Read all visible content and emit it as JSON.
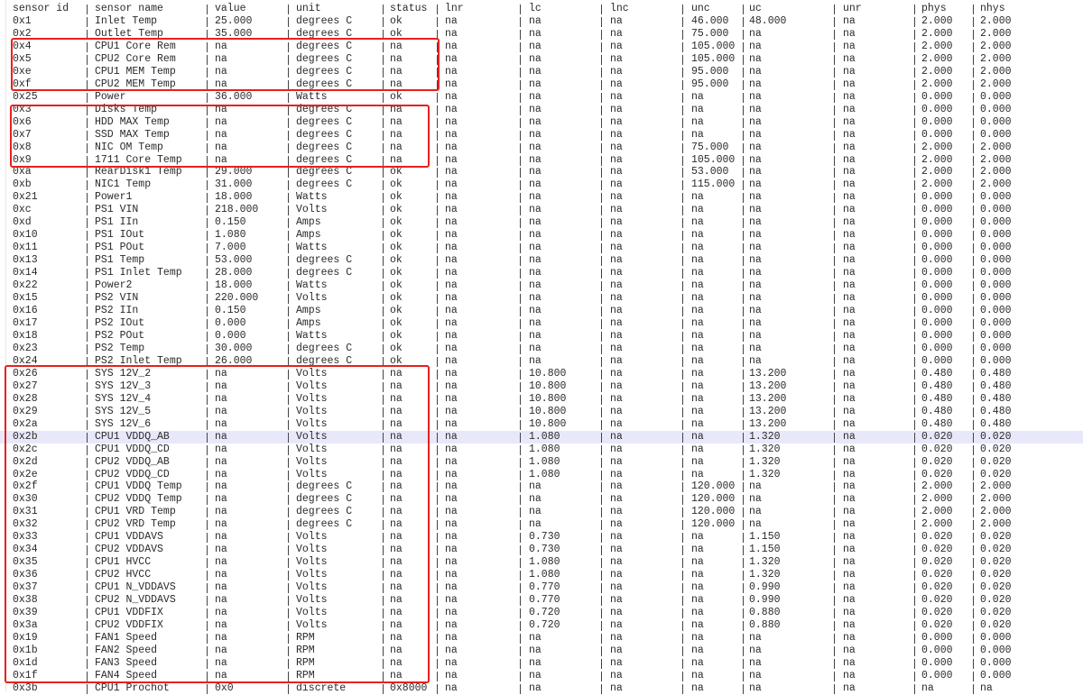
{
  "header": [
    "sensor id",
    "sensor name",
    "value",
    "unit",
    "status",
    "lnr",
    "lc",
    "lnc",
    "unc",
    "uc",
    "unr",
    "phys",
    "nhys"
  ],
  "rows": [
    [
      "0x1",
      "Inlet Temp",
      "25.000",
      "degrees C",
      "ok",
      "na",
      "na",
      "na",
      "46.000",
      "48.000",
      "na",
      "2.000",
      "2.000"
    ],
    [
      "0x2",
      "Outlet Temp",
      "35.000",
      "degrees C",
      "ok",
      "na",
      "na",
      "na",
      "75.000",
      "na",
      "na",
      "2.000",
      "2.000"
    ],
    [
      "0x4",
      "CPU1 Core Rem",
      "na",
      "degrees C",
      "na",
      "na",
      "na",
      "na",
      "105.000",
      "na",
      "na",
      "2.000",
      "2.000"
    ],
    [
      "0x5",
      "CPU2 Core Rem",
      "na",
      "degrees C",
      "na",
      "na",
      "na",
      "na",
      "105.000",
      "na",
      "na",
      "2.000",
      "2.000"
    ],
    [
      "0xe",
      "CPU1 MEM Temp",
      "na",
      "degrees C",
      "na",
      "na",
      "na",
      "na",
      "95.000",
      "na",
      "na",
      "2.000",
      "2.000"
    ],
    [
      "0xf",
      "CPU2 MEM Temp",
      "na",
      "degrees C",
      "na",
      "na",
      "na",
      "na",
      "95.000",
      "na",
      "na",
      "2.000",
      "2.000"
    ],
    [
      "0x25",
      "Power",
      "36.000",
      "Watts",
      "ok",
      "na",
      "na",
      "na",
      "na",
      "na",
      "na",
      "0.000",
      "0.000"
    ],
    [
      "0x3",
      "Disks Temp",
      "na",
      "degrees C",
      "na",
      "na",
      "na",
      "na",
      "na",
      "na",
      "na",
      "0.000",
      "0.000"
    ],
    [
      "0x6",
      "HDD MAX Temp",
      "na",
      "degrees C",
      "na",
      "na",
      "na",
      "na",
      "na",
      "na",
      "na",
      "0.000",
      "0.000"
    ],
    [
      "0x7",
      "SSD MAX Temp",
      "na",
      "degrees C",
      "na",
      "na",
      "na",
      "na",
      "na",
      "na",
      "na",
      "0.000",
      "0.000"
    ],
    [
      "0x8",
      "NIC OM Temp",
      "na",
      "degrees C",
      "na",
      "na",
      "na",
      "na",
      "75.000",
      "na",
      "na",
      "2.000",
      "2.000"
    ],
    [
      "0x9",
      "1711 Core Temp",
      "na",
      "degrees C",
      "na",
      "na",
      "na",
      "na",
      "105.000",
      "na",
      "na",
      "2.000",
      "2.000"
    ],
    [
      "0xa",
      "RearDisk1 Temp",
      "29.000",
      "degrees C",
      "ok",
      "na",
      "na",
      "na",
      "53.000",
      "na",
      "na",
      "2.000",
      "2.000"
    ],
    [
      "0xb",
      "NIC1 Temp",
      "31.000",
      "degrees C",
      "ok",
      "na",
      "na",
      "na",
      "115.000",
      "na",
      "na",
      "2.000",
      "2.000"
    ],
    [
      "0x21",
      "Power1",
      "18.000",
      "Watts",
      "ok",
      "na",
      "na",
      "na",
      "na",
      "na",
      "na",
      "0.000",
      "0.000"
    ],
    [
      "0xc",
      "PS1 VIN",
      "218.000",
      "Volts",
      "ok",
      "na",
      "na",
      "na",
      "na",
      "na",
      "na",
      "0.000",
      "0.000"
    ],
    [
      "0xd",
      "PS1 IIn",
      "0.150",
      "Amps",
      "ok",
      "na",
      "na",
      "na",
      "na",
      "na",
      "na",
      "0.000",
      "0.000"
    ],
    [
      "0x10",
      "PS1 IOut",
      "1.080",
      "Amps",
      "ok",
      "na",
      "na",
      "na",
      "na",
      "na",
      "na",
      "0.000",
      "0.000"
    ],
    [
      "0x11",
      "PS1 POut",
      "7.000",
      "Watts",
      "ok",
      "na",
      "na",
      "na",
      "na",
      "na",
      "na",
      "0.000",
      "0.000"
    ],
    [
      "0x13",
      "PS1 Temp",
      "53.000",
      "degrees C",
      "ok",
      "na",
      "na",
      "na",
      "na",
      "na",
      "na",
      "0.000",
      "0.000"
    ],
    [
      "0x14",
      "PS1 Inlet Temp",
      "28.000",
      "degrees C",
      "ok",
      "na",
      "na",
      "na",
      "na",
      "na",
      "na",
      "0.000",
      "0.000"
    ],
    [
      "0x22",
      "Power2",
      "18.000",
      "Watts",
      "ok",
      "na",
      "na",
      "na",
      "na",
      "na",
      "na",
      "0.000",
      "0.000"
    ],
    [
      "0x15",
      "PS2 VIN",
      "220.000",
      "Volts",
      "ok",
      "na",
      "na",
      "na",
      "na",
      "na",
      "na",
      "0.000",
      "0.000"
    ],
    [
      "0x16",
      "PS2 IIn",
      "0.150",
      "Amps",
      "ok",
      "na",
      "na",
      "na",
      "na",
      "na",
      "na",
      "0.000",
      "0.000"
    ],
    [
      "0x17",
      "PS2 IOut",
      "0.000",
      "Amps",
      "ok",
      "na",
      "na",
      "na",
      "na",
      "na",
      "na",
      "0.000",
      "0.000"
    ],
    [
      "0x18",
      "PS2 POut",
      "0.000",
      "Watts",
      "ok",
      "na",
      "na",
      "na",
      "na",
      "na",
      "na",
      "0.000",
      "0.000"
    ],
    [
      "0x23",
      "PS2 Temp",
      "30.000",
      "degrees C",
      "ok",
      "na",
      "na",
      "na",
      "na",
      "na",
      "na",
      "0.000",
      "0.000"
    ],
    [
      "0x24",
      "PS2 Inlet Temp",
      "26.000",
      "degrees C",
      "ok",
      "na",
      "na",
      "na",
      "na",
      "na",
      "na",
      "0.000",
      "0.000"
    ],
    [
      "0x26",
      "SYS 12V_2",
      "na",
      "Volts",
      "na",
      "na",
      "10.800",
      "na",
      "na",
      "13.200",
      "na",
      "0.480",
      "0.480"
    ],
    [
      "0x27",
      "SYS 12V_3",
      "na",
      "Volts",
      "na",
      "na",
      "10.800",
      "na",
      "na",
      "13.200",
      "na",
      "0.480",
      "0.480"
    ],
    [
      "0x28",
      "SYS 12V_4",
      "na",
      "Volts",
      "na",
      "na",
      "10.800",
      "na",
      "na",
      "13.200",
      "na",
      "0.480",
      "0.480"
    ],
    [
      "0x29",
      "SYS 12V_5",
      "na",
      "Volts",
      "na",
      "na",
      "10.800",
      "na",
      "na",
      "13.200",
      "na",
      "0.480",
      "0.480"
    ],
    [
      "0x2a",
      "SYS 12V_6",
      "na",
      "Volts",
      "na",
      "na",
      "10.800",
      "na",
      "na",
      "13.200",
      "na",
      "0.480",
      "0.480"
    ],
    [
      "0x2b",
      "CPU1 VDDQ_AB",
      "na",
      "Volts",
      "na",
      "na",
      "1.080",
      "na",
      "na",
      "1.320",
      "na",
      "0.020",
      "0.020"
    ],
    [
      "0x2c",
      "CPU1 VDDQ_CD",
      "na",
      "Volts",
      "na",
      "na",
      "1.080",
      "na",
      "na",
      "1.320",
      "na",
      "0.020",
      "0.020"
    ],
    [
      "0x2d",
      "CPU2 VDDQ_AB",
      "na",
      "Volts",
      "na",
      "na",
      "1.080",
      "na",
      "na",
      "1.320",
      "na",
      "0.020",
      "0.020"
    ],
    [
      "0x2e",
      "CPU2 VDDQ_CD",
      "na",
      "Volts",
      "na",
      "na",
      "1.080",
      "na",
      "na",
      "1.320",
      "na",
      "0.020",
      "0.020"
    ],
    [
      "0x2f",
      "CPU1 VDDQ Temp",
      "na",
      "degrees C",
      "na",
      "na",
      "na",
      "na",
      "120.000",
      "na",
      "na",
      "2.000",
      "2.000"
    ],
    [
      "0x30",
      "CPU2 VDDQ Temp",
      "na",
      "degrees C",
      "na",
      "na",
      "na",
      "na",
      "120.000",
      "na",
      "na",
      "2.000",
      "2.000"
    ],
    [
      "0x31",
      "CPU1 VRD Temp",
      "na",
      "degrees C",
      "na",
      "na",
      "na",
      "na",
      "120.000",
      "na",
      "na",
      "2.000",
      "2.000"
    ],
    [
      "0x32",
      "CPU2 VRD Temp",
      "na",
      "degrees C",
      "na",
      "na",
      "na",
      "na",
      "120.000",
      "na",
      "na",
      "2.000",
      "2.000"
    ],
    [
      "0x33",
      "CPU1 VDDAVS",
      "na",
      "Volts",
      "na",
      "na",
      "0.730",
      "na",
      "na",
      "1.150",
      "na",
      "0.020",
      "0.020"
    ],
    [
      "0x34",
      "CPU2 VDDAVS",
      "na",
      "Volts",
      "na",
      "na",
      "0.730",
      "na",
      "na",
      "1.150",
      "na",
      "0.020",
      "0.020"
    ],
    [
      "0x35",
      "CPU1 HVCC",
      "na",
      "Volts",
      "na",
      "na",
      "1.080",
      "na",
      "na",
      "1.320",
      "na",
      "0.020",
      "0.020"
    ],
    [
      "0x36",
      "CPU2 HVCC",
      "na",
      "Volts",
      "na",
      "na",
      "1.080",
      "na",
      "na",
      "1.320",
      "na",
      "0.020",
      "0.020"
    ],
    [
      "0x37",
      "CPU1 N_VDDAVS",
      "na",
      "Volts",
      "na",
      "na",
      "0.770",
      "na",
      "na",
      "0.990",
      "na",
      "0.020",
      "0.020"
    ],
    [
      "0x38",
      "CPU2 N_VDDAVS",
      "na",
      "Volts",
      "na",
      "na",
      "0.770",
      "na",
      "na",
      "0.990",
      "na",
      "0.020",
      "0.020"
    ],
    [
      "0x39",
      "CPU1 VDDFIX",
      "na",
      "Volts",
      "na",
      "na",
      "0.720",
      "na",
      "na",
      "0.880",
      "na",
      "0.020",
      "0.020"
    ],
    [
      "0x3a",
      "CPU2 VDDFIX",
      "na",
      "Volts",
      "na",
      "na",
      "0.720",
      "na",
      "na",
      "0.880",
      "na",
      "0.020",
      "0.020"
    ],
    [
      "0x19",
      "FAN1 Speed",
      "na",
      "RPM",
      "na",
      "na",
      "na",
      "na",
      "na",
      "na",
      "na",
      "0.000",
      "0.000"
    ],
    [
      "0x1b",
      "FAN2 Speed",
      "na",
      "RPM",
      "na",
      "na",
      "na",
      "na",
      "na",
      "na",
      "na",
      "0.000",
      "0.000"
    ],
    [
      "0x1d",
      "FAN3 Speed",
      "na",
      "RPM",
      "na",
      "na",
      "na",
      "na",
      "na",
      "na",
      "na",
      "0.000",
      "0.000"
    ],
    [
      "0x1f",
      "FAN4 Speed",
      "na",
      "RPM",
      "na",
      "na",
      "na",
      "na",
      "na",
      "na",
      "na",
      "0.000",
      "0.000"
    ],
    [
      "0x3b",
      "CPU1 Prochot",
      "0x0",
      "discrete",
      "0x8000",
      "na",
      "na",
      "na",
      "na",
      "na",
      "na",
      "na",
      "na"
    ]
  ]
}
